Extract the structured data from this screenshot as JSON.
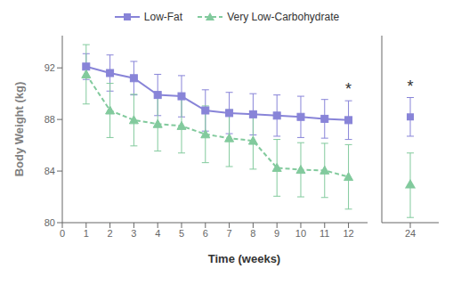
{
  "chart_data": [
    {
      "type": "line",
      "xlabel": "Time (weeks)",
      "ylabel": "Body Weight (kg)",
      "x": [
        1,
        2,
        3,
        4,
        5,
        6,
        7,
        8,
        9,
        10,
        11,
        12
      ],
      "xlim": [
        0,
        12.8
      ],
      "xticks": [
        0,
        1,
        2,
        3,
        4,
        5,
        6,
        7,
        8,
        9,
        10,
        11,
        12
      ],
      "ylim": [
        80,
        94.5
      ],
      "yticks": [
        80,
        84,
        88,
        92
      ],
      "legend": "top",
      "series": [
        {
          "name": "Low-Fat",
          "color": "#8884d8",
          "marker": "square",
          "line_style": "solid",
          "values": [
            92.1,
            91.6,
            91.2,
            89.9,
            89.8,
            88.7,
            88.5,
            88.4,
            88.3,
            88.2,
            88.05,
            87.95
          ],
          "error": [
            1.0,
            1.4,
            1.3,
            1.6,
            1.6,
            1.6,
            1.6,
            1.6,
            1.6,
            1.6,
            1.5,
            1.5
          ]
        },
        {
          "name": "Very Low-Carbohydrate",
          "color": "#82ca9d",
          "marker": "triangle",
          "line_style": "dashed",
          "values": [
            91.5,
            88.7,
            87.95,
            87.65,
            87.5,
            86.85,
            86.55,
            86.35,
            84.25,
            84.1,
            84.05,
            83.55
          ],
          "error": [
            2.3,
            2.1,
            2.0,
            2.1,
            2.1,
            2.2,
            2.2,
            2.2,
            2.2,
            2.1,
            2.1,
            2.5
          ]
        }
      ],
      "annotations": [
        {
          "text": "*",
          "x": 12,
          "y": 89.6
        }
      ]
    },
    {
      "type": "scatter",
      "x": [
        24
      ],
      "xlim": [
        22.5,
        25.5
      ],
      "xticks": [
        24
      ],
      "ylim": [
        80,
        94.5
      ],
      "yticks": [
        80,
        84,
        88,
        92
      ],
      "tick_labels": "x",
      "series": [
        {
          "name": "Low-Fat",
          "color": "#8884d8",
          "marker": "square",
          "values": [
            88.2
          ],
          "error": [
            1.5
          ]
        },
        {
          "name": "Very Low-Carbohydrate",
          "color": "#82ca9d",
          "marker": "triangle",
          "values": [
            82.9
          ],
          "error": [
            2.5
          ]
        }
      ],
      "annotations": [
        {
          "text": "*",
          "x": 24,
          "y": 89.8
        }
      ]
    }
  ]
}
